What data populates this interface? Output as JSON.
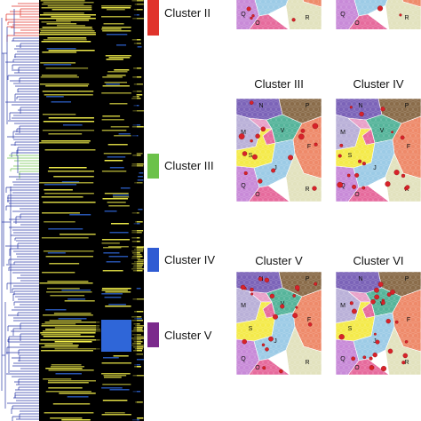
{
  "heatmap_clusters": [
    {
      "label": "Cluster II",
      "color": "#e0342c"
    },
    {
      "label": "Cluster III",
      "color": "#6cc24a"
    },
    {
      "label": "Cluster IV",
      "color": "#2f5bd3"
    },
    {
      "label": "Cluster V",
      "color": "#7b2a8c"
    }
  ],
  "maps": [
    {
      "title": ""
    },
    {
      "title": ""
    },
    {
      "title": "Cluster III"
    },
    {
      "title": "Cluster IV"
    },
    {
      "title": "Cluster V"
    },
    {
      "title": "Cluster VI"
    }
  ],
  "region_labels": [
    "N",
    "P",
    "M",
    "V",
    "F",
    "S",
    "Q",
    "J",
    "R",
    "O"
  ],
  "colors": {
    "heat_high": "#f2ee4a",
    "heat_low": "#2f66d8",
    "heat_mid": "#000000",
    "tree": "#2b3aa8",
    "tree_red": "#e0342c",
    "tree_green": "#6cc24a"
  }
}
